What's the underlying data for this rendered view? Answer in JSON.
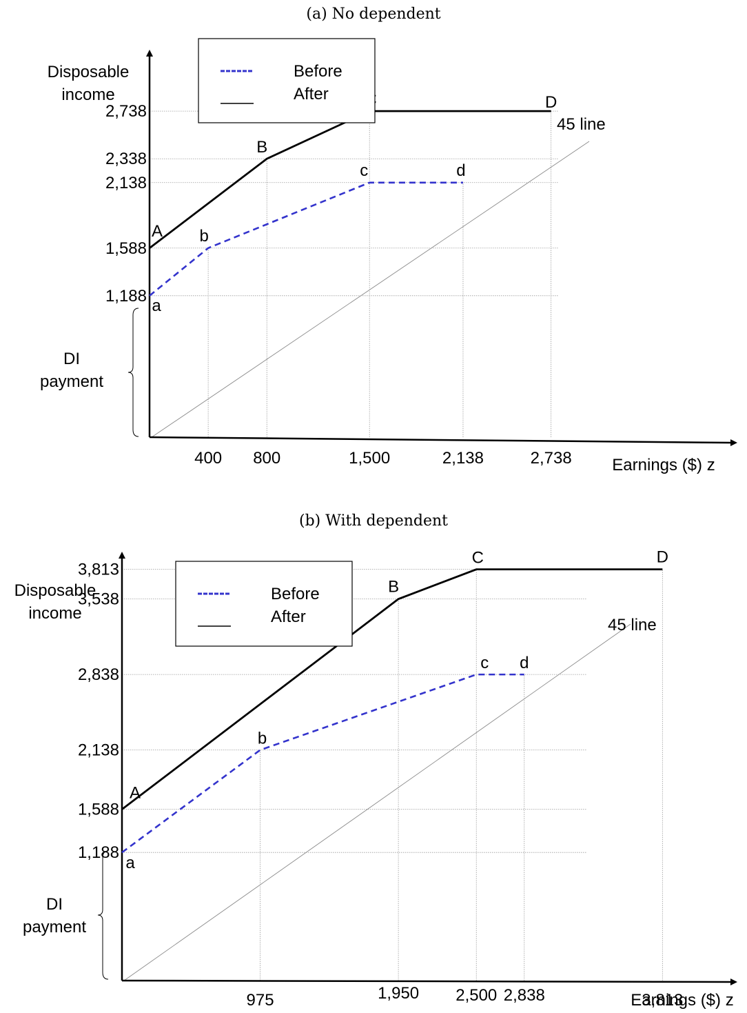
{
  "chart_data": [
    {
      "type": "line",
      "title": "(a) No dependent",
      "ylabel_lines": [
        "Disposable",
        "income"
      ],
      "xlabel": "Earnings ($) z",
      "xlim": [
        0,
        3500
      ],
      "ylim": [
        0,
        3300
      ],
      "x_ticks": [
        {
          "value": 400,
          "label": "400"
        },
        {
          "value": 800,
          "label": "800"
        },
        {
          "value": 1500,
          "label": "1,500"
        },
        {
          "value": 2138,
          "label": "2,138"
        },
        {
          "value": 2738,
          "label": "2,738"
        }
      ],
      "y_ticks": [
        {
          "value": 1188,
          "label": "1,188"
        },
        {
          "value": 1588,
          "label": "1,588"
        },
        {
          "value": 2138,
          "label": "2,138"
        },
        {
          "value": 2338,
          "label": "2,338"
        },
        {
          "value": 2738,
          "label": "2,738"
        }
      ],
      "series": [
        {
          "name": "Before",
          "style": "dashed",
          "color": "#3333cc",
          "points": [
            {
              "x": 0,
              "y": 1188,
              "label": "a"
            },
            {
              "x": 400,
              "y": 1588,
              "label": "b"
            },
            {
              "x": 1500,
              "y": 2138,
              "label": "c"
            },
            {
              "x": 2138,
              "y": 2138,
              "label": "d"
            }
          ]
        },
        {
          "name": "After",
          "style": "solid",
          "color": "#000000",
          "points": [
            {
              "x": 0,
              "y": 1588,
              "label": "A"
            },
            {
              "x": 800,
              "y": 2338,
              "label": "B"
            },
            {
              "x": 1500,
              "y": 2738,
              "label": "C"
            },
            {
              "x": 2738,
              "y": 2738,
              "label": "D"
            }
          ]
        }
      ],
      "reference_line": {
        "label": "45 line",
        "slope": 1
      },
      "brace_label_lines": [
        "DI",
        "payment"
      ],
      "brace_range": [
        0,
        1188
      ],
      "grid": true,
      "legend_position": "top-left"
    },
    {
      "type": "line",
      "title": "(b) With dependent",
      "ylabel_lines": [
        "Disposable",
        "income"
      ],
      "xlabel": "Earnings ($) z",
      "xlim": [
        0,
        4300
      ],
      "ylim": [
        0,
        4800
      ],
      "x_ticks": [
        {
          "value": 975,
          "label": "975"
        },
        {
          "value": 1950,
          "label": "1,950"
        },
        {
          "value": 2500,
          "label": "2,500"
        },
        {
          "value": 2838,
          "label": "2,838"
        },
        {
          "value": 3813,
          "label": "3,813"
        }
      ],
      "y_ticks": [
        {
          "value": 1188,
          "label": "1,188"
        },
        {
          "value": 1588,
          "label": "1,588"
        },
        {
          "value": 2138,
          "label": "2,138"
        },
        {
          "value": 2838,
          "label": "2,838"
        },
        {
          "value": 3538,
          "label": "3,538"
        },
        {
          "value": 3813,
          "label": "3,813"
        }
      ],
      "series": [
        {
          "name": "Before",
          "style": "dashed",
          "color": "#3333cc",
          "points": [
            {
              "x": 0,
              "y": 1188,
              "label": "a"
            },
            {
              "x": 975,
              "y": 2138,
              "label": "b"
            },
            {
              "x": 2500,
              "y": 2838,
              "label": "c"
            },
            {
              "x": 2838,
              "y": 2838,
              "label": "d"
            }
          ]
        },
        {
          "name": "After",
          "style": "solid",
          "color": "#000000",
          "points": [
            {
              "x": 0,
              "y": 1588,
              "label": "A"
            },
            {
              "x": 1950,
              "y": 3538,
              "label": "B"
            },
            {
              "x": 2500,
              "y": 3813,
              "label": "C"
            },
            {
              "x": 3813,
              "y": 3813,
              "label": "D"
            }
          ]
        }
      ],
      "reference_line": {
        "label": "45 line",
        "slope": 1
      },
      "brace_label_lines": [
        "DI",
        "payment"
      ],
      "brace_range": [
        0,
        1188
      ],
      "grid": true,
      "legend_position": "top-left"
    }
  ]
}
